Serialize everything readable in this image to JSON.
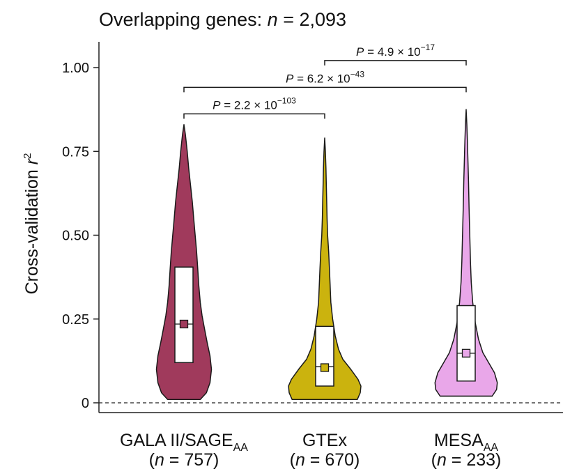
{
  "chart_data": {
    "type": "violin",
    "title_prefix": "Overlapping genes: ",
    "title_n_symbol": "n",
    "title_n_value": " = 2,093",
    "ylabel_text": "Cross-validation ",
    "ylabel_symbol": "r",
    "ylabel_exponent": "2",
    "ylim": [
      0,
      1.05
    ],
    "yticks": [
      {
        "value": 0,
        "label": "0"
      },
      {
        "value": 0.25,
        "label": "0.25"
      },
      {
        "value": 0.5,
        "label": "0.50"
      },
      {
        "value": 0.75,
        "label": "0.75"
      },
      {
        "value": 1.0,
        "label": "1.00"
      }
    ],
    "reference_line": {
      "value": 0,
      "style": "dashed"
    },
    "groups": [
      {
        "name_main": "GALA II/SAGE",
        "name_sub": "AA",
        "n_label_open": "(",
        "n_symbol": "n",
        "n_label_value": " = 757)",
        "color": "#a03a5c",
        "min": 0.01,
        "max": 0.83,
        "q1": 0.12,
        "median": 0.235,
        "q3": 0.405,
        "mean": 0.235,
        "density": [
          [
            0.01,
            0.45
          ],
          [
            0.03,
            0.62
          ],
          [
            0.06,
            0.72
          ],
          [
            0.1,
            0.76
          ],
          [
            0.14,
            0.72
          ],
          [
            0.18,
            0.64
          ],
          [
            0.22,
            0.57
          ],
          [
            0.26,
            0.5
          ],
          [
            0.3,
            0.45
          ],
          [
            0.35,
            0.41
          ],
          [
            0.4,
            0.38
          ],
          [
            0.45,
            0.35
          ],
          [
            0.5,
            0.31
          ],
          [
            0.55,
            0.27
          ],
          [
            0.6,
            0.23
          ],
          [
            0.65,
            0.18
          ],
          [
            0.7,
            0.13
          ],
          [
            0.75,
            0.09
          ],
          [
            0.8,
            0.04
          ],
          [
            0.83,
            0.0
          ]
        ]
      },
      {
        "name_main": "GTEx",
        "name_sub": "",
        "n_label_open": "(",
        "n_symbol": "n",
        "n_label_value": " = 670)",
        "color": "#cbb30e",
        "min": 0.01,
        "max": 0.79,
        "q1": 0.05,
        "median": 0.108,
        "q3": 0.228,
        "mean": 0.105,
        "density": [
          [
            0.01,
            0.9
          ],
          [
            0.03,
            0.98
          ],
          [
            0.05,
            1.0
          ],
          [
            0.07,
            0.92
          ],
          [
            0.1,
            0.72
          ],
          [
            0.13,
            0.5
          ],
          [
            0.16,
            0.38
          ],
          [
            0.2,
            0.29
          ],
          [
            0.25,
            0.22
          ],
          [
            0.3,
            0.17
          ],
          [
            0.35,
            0.15
          ],
          [
            0.4,
            0.13
          ],
          [
            0.45,
            0.11
          ],
          [
            0.5,
            0.08
          ],
          [
            0.55,
            0.065
          ],
          [
            0.6,
            0.055
          ],
          [
            0.65,
            0.045
          ],
          [
            0.7,
            0.035
          ],
          [
            0.75,
            0.02
          ],
          [
            0.79,
            0.0
          ]
        ]
      },
      {
        "name_main": "MESA",
        "name_sub": "AA",
        "n_label_open": "(",
        "n_symbol": "n",
        "n_label_value": " = 233)",
        "color": "#e9a7e9",
        "min": 0.02,
        "max": 0.875,
        "q1": 0.065,
        "median": 0.148,
        "q3": 0.29,
        "mean": 0.148,
        "density": [
          [
            0.02,
            0.72
          ],
          [
            0.04,
            0.84
          ],
          [
            0.06,
            0.86
          ],
          [
            0.09,
            0.78
          ],
          [
            0.12,
            0.62
          ],
          [
            0.15,
            0.46
          ],
          [
            0.19,
            0.34
          ],
          [
            0.24,
            0.25
          ],
          [
            0.3,
            0.18
          ],
          [
            0.36,
            0.14
          ],
          [
            0.42,
            0.12
          ],
          [
            0.5,
            0.1
          ],
          [
            0.58,
            0.08
          ],
          [
            0.66,
            0.065
          ],
          [
            0.72,
            0.05
          ],
          [
            0.78,
            0.035
          ],
          [
            0.83,
            0.02
          ],
          [
            0.875,
            0.0
          ]
        ]
      }
    ],
    "comparisons": [
      {
        "from": 0,
        "to": 1,
        "p_symbol": "P",
        "p_text": " = 2.2 × 10",
        "p_exponent": "−103",
        "y": 0.862
      },
      {
        "from": 0,
        "to": 2,
        "p_symbol": "P",
        "p_text": " = 6.2 × 10",
        "p_exponent": "−43",
        "y": 0.941
      },
      {
        "from": 1,
        "to": 2,
        "p_symbol": "P",
        "p_text": " = 4.9 × 10",
        "p_exponent": "−17",
        "y": 1.021
      }
    ]
  }
}
